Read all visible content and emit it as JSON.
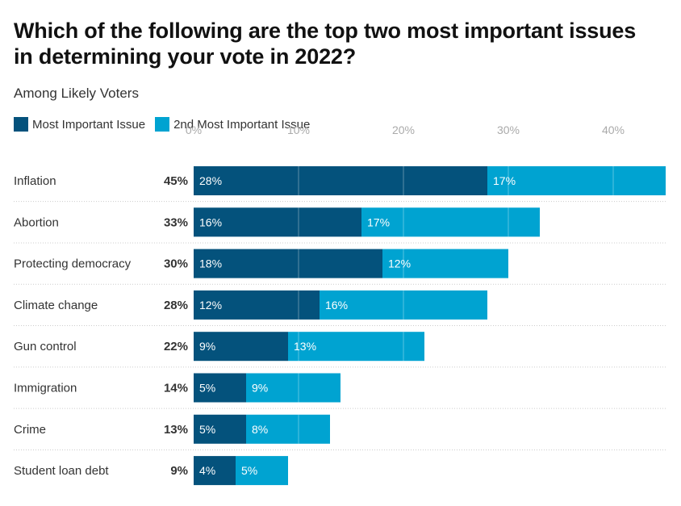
{
  "chart_data": {
    "type": "bar",
    "orientation": "horizontal",
    "stacked": true,
    "title": "Which of the following are the top two most important issues in determining your vote in 2022?",
    "subtitle": "Among Likely Voters",
    "xlabel": "",
    "ylabel": "",
    "xlim": [
      0,
      45
    ],
    "x_ticks": [
      0,
      10,
      20,
      30,
      40
    ],
    "x_tick_labels": [
      "0%",
      "10%",
      "20%",
      "30%",
      "40%"
    ],
    "grid": true,
    "legend_position": "top-left",
    "categories": [
      "Inflation",
      "Abortion",
      "Protecting democracy",
      "Climate change",
      "Gun control",
      "Immigration",
      "Crime",
      "Student loan debt"
    ],
    "totals": [
      45,
      33,
      30,
      28,
      22,
      14,
      13,
      9
    ],
    "total_labels": [
      "45%",
      "33%",
      "30%",
      "28%",
      "22%",
      "14%",
      "13%",
      "9%"
    ],
    "series": [
      {
        "name": "Most Important Issue",
        "color": "#04527c",
        "values": [
          28,
          16,
          18,
          12,
          9,
          5,
          5,
          4
        ]
      },
      {
        "name": "2nd Most Important Issue",
        "color": "#00a3d1",
        "values": [
          17,
          17,
          12,
          16,
          13,
          9,
          8,
          5
        ]
      }
    ]
  }
}
